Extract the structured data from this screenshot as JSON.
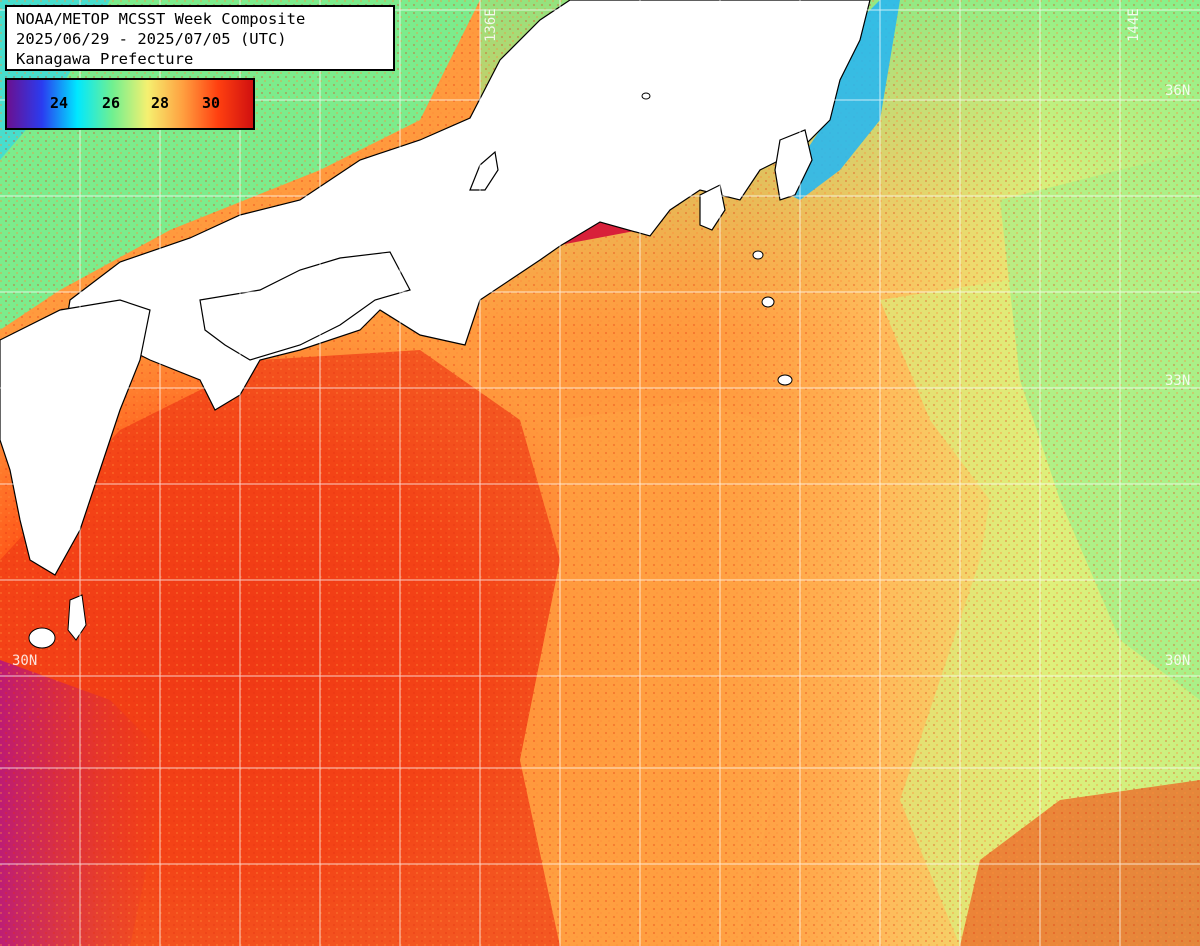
{
  "title": {
    "line1": "NOAA/METOP MCSST Week Composite",
    "line2": "2025/06/29 - 2025/07/05 (UTC)",
    "line3": "Kanagawa Prefecture"
  },
  "legend": {
    "ticks": [
      "24",
      "26",
      "28",
      "30"
    ],
    "gradient_colors": [
      "#6a1090",
      "#2a3cf0",
      "#00e8ff",
      "#70f090",
      "#f5f070",
      "#ffa040",
      "#ff4010",
      "#d01010"
    ]
  },
  "grid_labels": {
    "lat_36": "36N",
    "lat_33": "33N",
    "lat_30_left": "30N",
    "lat_30_right": "30N",
    "lat_left_top": "33",
    "lon_136": "136E",
    "lon_144": "144E"
  },
  "colors": {
    "land": "#ffffff",
    "warm_sea": "#ff5a1a",
    "hot_sea": "#e62a12",
    "mid_sea": "#ffa844",
    "cool_sea": "#f2ee78",
    "cold_sea": "#7ef08a",
    "coastal_cold": "#29c8f0",
    "grid": "#ffffff"
  }
}
